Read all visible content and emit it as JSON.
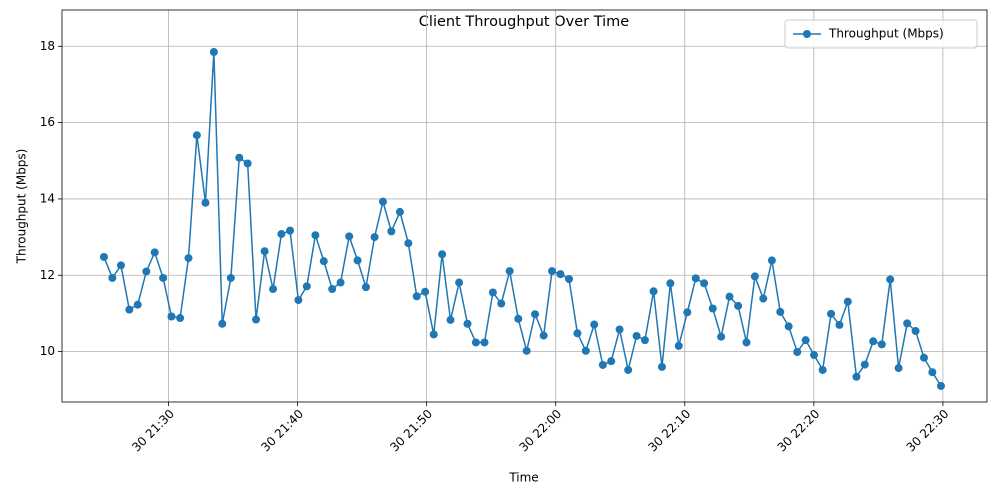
{
  "chart_data": {
    "type": "line",
    "title": "Client Throughput Over Time",
    "x_label": "Time",
    "y_label": "Throughput (Mbps)",
    "x": [
      "30 21:25:00",
      "30 21:25:39",
      "30 21:26:19",
      "30 21:26:58",
      "30 21:27:37",
      "30 21:28:17",
      "30 21:28:56",
      "30 21:29:35",
      "30 21:30:14",
      "30 21:30:54",
      "30 21:31:33",
      "30 21:32:12",
      "30 21:32:52",
      "30 21:33:31",
      "30 21:34:10",
      "30 21:34:50",
      "30 21:35:29",
      "30 21:36:08",
      "30 21:36:47",
      "30 21:37:27",
      "30 21:38:06",
      "30 21:38:45",
      "30 21:39:25",
      "30 21:40:04",
      "30 21:40:43",
      "30 21:41:23",
      "30 21:42:02",
      "30 21:42:41",
      "30 21:43:20",
      "30 21:44:00",
      "30 21:44:39",
      "30 21:45:18",
      "30 21:45:58",
      "30 21:46:37",
      "30 21:47:16",
      "30 21:47:56",
      "30 21:48:35",
      "30 21:49:14",
      "30 21:49:53",
      "30 21:50:33",
      "30 21:51:12",
      "30 21:51:51",
      "30 21:52:31",
      "30 21:53:10",
      "30 21:53:49",
      "30 21:54:29",
      "30 21:55:08",
      "30 21:55:47",
      "30 21:56:26",
      "30 21:57:06",
      "30 21:57:45",
      "30 21:58:24",
      "30 21:59:04",
      "30 21:59:43",
      "30 22:00:22",
      "30 22:01:02",
      "30 22:01:41",
      "30 22:02:20",
      "30 22:02:59",
      "30 22:03:39",
      "30 22:04:18",
      "30 22:04:57",
      "30 22:05:37",
      "30 22:06:16",
      "30 22:06:55",
      "30 22:07:35",
      "30 22:08:14",
      "30 22:08:53",
      "30 22:09:32",
      "30 22:10:12",
      "30 22:10:51",
      "30 22:11:30",
      "30 22:12:10",
      "30 22:12:49",
      "30 22:13:28",
      "30 22:14:08",
      "30 22:14:47",
      "30 22:15:26",
      "30 22:16:05",
      "30 22:16:45",
      "30 22:17:24",
      "30 22:18:03",
      "30 22:18:43",
      "30 22:19:22",
      "30 22:20:01",
      "30 22:20:41",
      "30 22:21:20",
      "30 22:21:59",
      "30 22:22:38",
      "30 22:23:18",
      "30 22:23:57",
      "30 22:24:36",
      "30 22:25:16",
      "30 22:25:55",
      "30 22:26:34",
      "30 22:27:14",
      "30 22:27:53",
      "30 22:28:32",
      "30 22:29:11",
      "30 22:29:51"
    ],
    "series": [
      {
        "name": "Throughput (Mbps)",
        "color": "#1f77b4",
        "values": [
          12.48,
          11.93,
          12.26,
          11.1,
          11.23,
          12.1,
          12.6,
          11.93,
          10.92,
          10.88,
          12.45,
          15.67,
          13.9,
          17.85,
          10.73,
          11.93,
          15.08,
          14.93,
          10.84,
          12.63,
          11.64,
          13.08,
          13.17,
          11.35,
          11.71,
          13.05,
          12.37,
          11.64,
          11.81,
          13.02,
          12.39,
          11.69,
          13.0,
          13.93,
          13.15,
          13.66,
          12.84,
          11.45,
          11.57,
          10.45,
          12.55,
          10.83,
          11.81,
          10.73,
          10.24,
          10.24,
          11.55,
          11.26,
          12.11,
          10.86,
          10.02,
          10.98,
          10.42,
          12.11,
          12.03,
          11.9,
          10.48,
          10.02,
          10.71,
          9.65,
          9.75,
          10.58,
          9.52,
          10.41,
          10.3,
          11.58,
          9.6,
          11.79,
          10.15,
          11.03,
          11.92,
          11.79,
          11.13,
          10.39,
          11.44,
          11.2,
          10.24,
          11.97,
          11.39,
          12.39,
          11.04,
          10.66,
          9.99,
          10.3,
          9.91,
          9.52,
          10.99,
          10.7,
          11.31,
          9.34,
          9.66,
          10.27,
          10.19,
          11.89,
          9.57,
          10.74,
          10.54,
          9.84,
          9.46,
          9.1
        ]
      }
    ],
    "xlim": [
      "30 21:21:45",
      "30 22:33:25"
    ],
    "xticks": [
      "30 21:30",
      "30 21:40",
      "30 21:50",
      "30 22:00",
      "30 22:10",
      "30 22:20",
      "30 22:30"
    ],
    "ylim": [
      8.68,
      18.95
    ],
    "yticks": [
      10,
      12,
      14,
      16,
      18
    ],
    "grid": true,
    "legend": "upper right"
  }
}
